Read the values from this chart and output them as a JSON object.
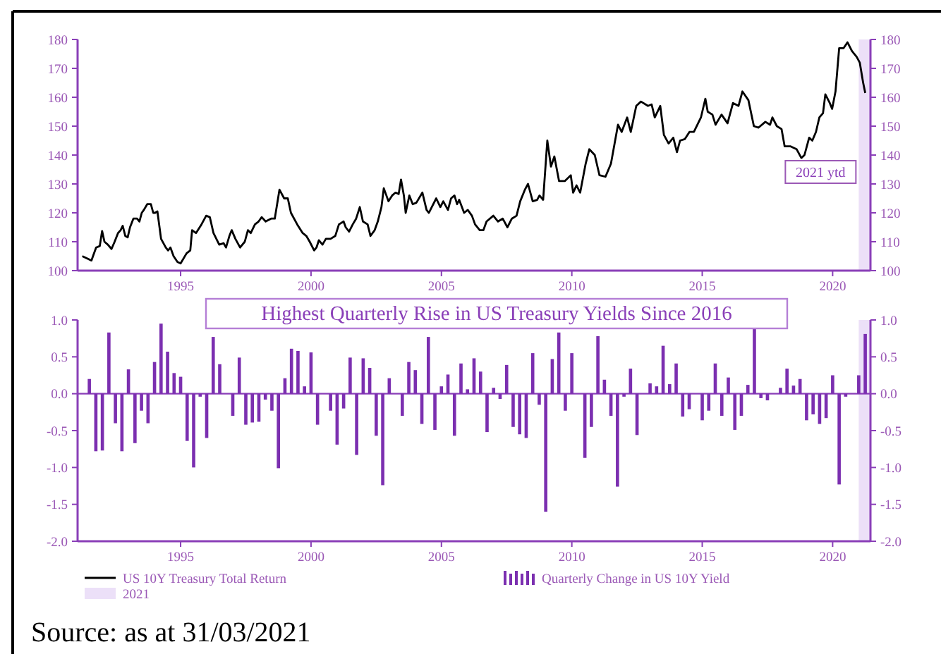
{
  "chart_data": [
    {
      "type": "line",
      "xlim": [
        1991.05,
        2021.45
      ],
      "xticks": [
        1995,
        2000,
        2005,
        2010,
        2015,
        2020
      ],
      "ylim": [
        100,
        180
      ],
      "yticks": [
        100,
        110,
        120,
        130,
        140,
        150,
        160,
        170,
        180
      ],
      "y2lim": [
        100,
        180
      ],
      "y2ticks": [
        100,
        110,
        120,
        130,
        140,
        150,
        160,
        170,
        180
      ],
      "legend": "bottom",
      "line_style": "solid",
      "annotations": [
        "2021 ytd"
      ],
      "bands": [
        {
          "axis": "x",
          "from": 2021,
          "to": 2021.45,
          "label": "2021",
          "color": "#ece0f8"
        }
      ],
      "series": [
        {
          "name": "US 10Y Treasury Total Return",
          "color": "#000000",
          "x": [
            1991.23,
            1991.46,
            1991.58,
            1991.76,
            1991.9,
            1991.99,
            1992.08,
            1992.21,
            1992.35,
            1992.47,
            1992.6,
            1992.7,
            1992.78,
            1992.88,
            1992.97,
            1993.06,
            1993.19,
            1993.33,
            1993.42,
            1993.51,
            1993.59,
            1993.72,
            1993.86,
            1993.95,
            1994.02,
            1994.11,
            1994.25,
            1994.43,
            1994.52,
            1994.61,
            1994.73,
            1994.88,
            1995.0,
            1995.23,
            1995.37,
            1995.44,
            1995.59,
            1995.8,
            1995.98,
            1996.12,
            1996.26,
            1996.48,
            1996.65,
            1996.74,
            1996.87,
            1996.96,
            1997.1,
            1997.28,
            1997.46,
            1997.58,
            1997.69,
            1997.85,
            1997.99,
            1998.11,
            1998.26,
            1998.47,
            1998.61,
            1998.79,
            1998.97,
            1999.11,
            1999.23,
            1999.47,
            1999.68,
            1999.82,
            1999.95,
            2000.12,
            2000.21,
            2000.3,
            2000.44,
            2000.57,
            2000.75,
            2000.93,
            2001.07,
            2001.25,
            2001.33,
            2001.46,
            2001.6,
            2001.73,
            2001.87,
            2001.99,
            2002.17,
            2002.28,
            2002.44,
            2002.56,
            2002.7,
            2002.79,
            2002.97,
            2003.11,
            2003.24,
            2003.36,
            2003.45,
            2003.56,
            2003.63,
            2003.77,
            2003.9,
            2004.04,
            2004.27,
            2004.43,
            2004.52,
            2004.63,
            2004.8,
            2004.96,
            2005.07,
            2005.25,
            2005.37,
            2005.5,
            2005.6,
            2005.68,
            2005.87,
            2006.01,
            2006.17,
            2006.29,
            2006.47,
            2006.61,
            2006.73,
            2006.99,
            2007.17,
            2007.35,
            2007.53,
            2007.7,
            2007.88,
            2008.02,
            2008.2,
            2008.32,
            2008.5,
            2008.67,
            2008.76,
            2008.9,
            2009.06,
            2009.2,
            2009.33,
            2009.51,
            2009.73,
            2009.96,
            2010.05,
            2010.18,
            2010.32,
            2010.53,
            2010.67,
            2010.88,
            2011.06,
            2011.29,
            2011.5,
            2011.77,
            2011.91,
            2012.12,
            2012.26,
            2012.47,
            2012.65,
            2012.92,
            2013.06,
            2013.18,
            2013.39,
            2013.53,
            2013.71,
            2013.89,
            2014.03,
            2014.15,
            2014.33,
            2014.51,
            2014.68,
            2014.95,
            2015.12,
            2015.21,
            2015.39,
            2015.51,
            2015.74,
            2015.97,
            2016.18,
            2016.39,
            2016.54,
            2016.77,
            2016.98,
            2017.16,
            2017.42,
            2017.6,
            2017.69,
            2017.86,
            2018.04,
            2018.16,
            2018.39,
            2018.62,
            2018.8,
            2018.92,
            2019.1,
            2019.22,
            2019.36,
            2019.49,
            2019.63,
            2019.72,
            2019.89,
            2019.98,
            2020.11,
            2020.25,
            2020.42,
            2020.57,
            2020.74,
            2020.92,
            2021.04,
            2021.17,
            2021.25
          ],
          "values": [
            105,
            104,
            103.5,
            108,
            108.5,
            113.7,
            110,
            109,
            107.5,
            110,
            113,
            114,
            115.5,
            112,
            111.5,
            115,
            118,
            118,
            117,
            120,
            121,
            123,
            123,
            120,
            120,
            120.5,
            111,
            108,
            107,
            108,
            105,
            103,
            102.5,
            106,
            107,
            114,
            113,
            116,
            119,
            118.5,
            113,
            109,
            109.5,
            108,
            112,
            114,
            111,
            108,
            110,
            114,
            113,
            116,
            117,
            118.5,
            117,
            118,
            118,
            128,
            125,
            125,
            120,
            116,
            113,
            112,
            110,
            107,
            108,
            110.5,
            109,
            111,
            111,
            112,
            116,
            117,
            115,
            113.5,
            116,
            118,
            122,
            117,
            116,
            112,
            114,
            117,
            122,
            128.5,
            124,
            126,
            127,
            126.5,
            131.5,
            126,
            120,
            126,
            123,
            123.5,
            127,
            121,
            120,
            122,
            125,
            122,
            124,
            121,
            125,
            126,
            123,
            124.5,
            120,
            121,
            119,
            116,
            114,
            114,
            117,
            119,
            117,
            118,
            115,
            118,
            119,
            124,
            128,
            130,
            124,
            124.5,
            126,
            124.5,
            145,
            136,
            139.5,
            131,
            131,
            133,
            127,
            129.5,
            127,
            137,
            142,
            140,
            133,
            132.5,
            137,
            150.5,
            148,
            153,
            148,
            157,
            158.5,
            157,
            157.5,
            153,
            157,
            147,
            144,
            146,
            141,
            145,
            145.5,
            148,
            148,
            153,
            159.5,
            155,
            154,
            150.5,
            154,
            151,
            158,
            157,
            162,
            159,
            150,
            149.5,
            151.5,
            150.5,
            153,
            150,
            149,
            143,
            143,
            142,
            139,
            140,
            146,
            145,
            148,
            153,
            154.5,
            161,
            158,
            156,
            162,
            177,
            177,
            179,
            176,
            174,
            172,
            165,
            161.5
          ]
        }
      ]
    },
    {
      "type": "bar",
      "title": "Highest Quarterly Rise in US Treasury Yields Since 2016",
      "xlim": [
        1991.05,
        2021.45
      ],
      "xticks": [
        1995,
        2000,
        2005,
        2010,
        2015,
        2020
      ],
      "ylim": [
        -2,
        1
      ],
      "yticks": [
        {
          "value": 1,
          "label": "1.0"
        },
        {
          "value": 0.5,
          "label": "0.5"
        },
        {
          "value": 0,
          "label": "0.0"
        },
        {
          "value": -0.5,
          "label": "-0.5"
        },
        {
          "value": -1,
          "label": "-1.0"
        },
        {
          "value": -1.5,
          "label": "-1.5"
        },
        {
          "value": -2,
          "label": "-2.0"
        }
      ],
      "y2lim": [
        -2,
        1
      ],
      "y2ticks": [
        {
          "value": 1,
          "label": "1.0"
        },
        {
          "value": 0.5,
          "label": "0.5"
        },
        {
          "value": 0,
          "label": "0.0"
        },
        {
          "value": -0.5,
          "label": "-0.5"
        },
        {
          "value": -1,
          "label": "-1.0"
        },
        {
          "value": -1.5,
          "label": "-1.5"
        },
        {
          "value": -2,
          "label": "-2.0"
        }
      ],
      "legend": "bottom",
      "annotations": [
        "Source: as at 31/03/2021"
      ],
      "ref_lines": [
        {
          "axis": "y",
          "value": 0,
          "color": "#8a3fb8"
        }
      ],
      "bands": [
        {
          "axis": "x",
          "from": 2021,
          "to": 2021.45,
          "color": "#ece0f8"
        }
      ],
      "x": [
        1991.5,
        1991.75,
        1992,
        1992.25,
        1992.5,
        1992.75,
        1993,
        1993.25,
        1993.5,
        1993.75,
        1994,
        1994.25,
        1994.5,
        1994.75,
        1995,
        1995.25,
        1995.5,
        1995.75,
        1996,
        1996.25,
        1996.5,
        1996.75,
        1997,
        1997.25,
        1997.5,
        1997.75,
        1998,
        1998.25,
        1998.5,
        1998.75,
        1999,
        1999.25,
        1999.5,
        1999.75,
        2000,
        2000.25,
        2000.5,
        2000.75,
        2001,
        2001.25,
        2001.5,
        2001.75,
        2002,
        2002.25,
        2002.5,
        2002.75,
        2003,
        2003.25,
        2003.5,
        2003.75,
        2004,
        2004.25,
        2004.5,
        2004.75,
        2005,
        2005.25,
        2005.5,
        2005.75,
        2006,
        2006.25,
        2006.5,
        2006.75,
        2007,
        2007.25,
        2007.5,
        2007.75,
        2008,
        2008.25,
        2008.5,
        2008.75,
        2009,
        2009.25,
        2009.5,
        2009.75,
        2010,
        2010.25,
        2010.5,
        2010.75,
        2011,
        2011.25,
        2011.5,
        2011.75,
        2012,
        2012.25,
        2012.5,
        2012.75,
        2013,
        2013.25,
        2013.5,
        2013.75,
        2014,
        2014.25,
        2014.5,
        2014.75,
        2015,
        2015.25,
        2015.5,
        2015.75,
        2016,
        2016.25,
        2016.5,
        2016.75,
        2017,
        2017.25,
        2017.5,
        2017.75,
        2018,
        2018.25,
        2018.5,
        2018.75,
        2019,
        2019.25,
        2019.5,
        2019.75,
        2020,
        2020.25,
        2020.5,
        2020.75,
        2021,
        2021.25
      ],
      "series": [
        {
          "name": "Quarterly Change in US 10Y Yield",
          "color": "#7b2fb0",
          "values": [
            0.2,
            -0.78,
            -0.77,
            0.83,
            -0.4,
            -0.78,
            0.33,
            -0.67,
            -0.23,
            -0.4,
            0.43,
            0.95,
            0.57,
            0.28,
            0.23,
            -0.64,
            -1.0,
            -0.04,
            -0.6,
            0.77,
            0.4,
            null,
            -0.3,
            0.49,
            -0.42,
            -0.39,
            -0.38,
            -0.08,
            -0.23,
            -1.01,
            0.21,
            0.61,
            0.58,
            0.1,
            0.56,
            -0.42,
            0,
            -0.23,
            -0.69,
            -0.2,
            0.49,
            -0.83,
            0.48,
            0.35,
            -0.57,
            -1.24,
            0.21,
            0,
            -0.3,
            0.43,
            0.32,
            -0.41,
            0.77,
            -0.49,
            0.1,
            0.26,
            -0.57,
            0.41,
            0.06,
            0.48,
            0.3,
            -0.52,
            0.08,
            -0.07,
            0.39,
            -0.45,
            -0.55,
            -0.6,
            0.55,
            -0.15,
            -1.6,
            0.47,
            0.83,
            -0.23,
            0.55,
            0,
            -0.87,
            -0.45,
            0.78,
            0.19,
            -0.3,
            -1.26,
            -0.04,
            0.34,
            -0.56,
            null,
            0.14,
            0.1,
            0.65,
            0.13,
            0.41,
            -0.31,
            -0.21,
            0,
            -0.36,
            -0.23,
            0.41,
            -0.3,
            0.22,
            -0.49,
            -0.3,
            0.12,
            0.88,
            -0.06,
            -0.09,
            null,
            0.08,
            0.34,
            0.11,
            0.2,
            -0.36,
            -0.28,
            -0.41,
            -0.33,
            0.25,
            -1.23,
            -0.04,
            null,
            0.25,
            0.81
          ]
        }
      ]
    }
  ]
}
